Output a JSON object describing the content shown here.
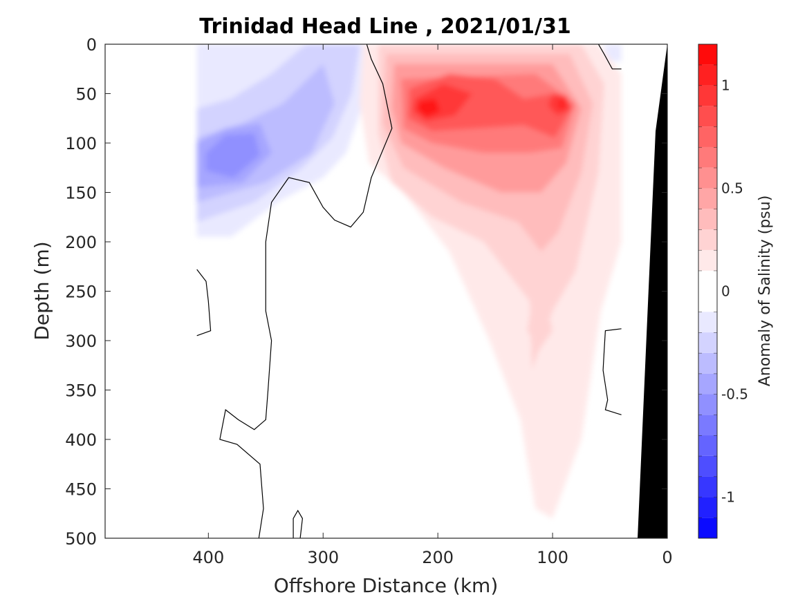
{
  "chart_data": {
    "type": "heatmap",
    "title": "Trinidad Head Line , 2021/01/31",
    "xlabel": "Offshore Distance (km)",
    "ylabel": "Depth (m)",
    "xlim": [
      490,
      0
    ],
    "ylim": [
      0,
      500
    ],
    "x_reversed": true,
    "y_reversed": true,
    "x_ticks": [
      "400",
      "300",
      "200",
      "100",
      "0"
    ],
    "y_ticks": [
      "0",
      "50",
      "100",
      "150",
      "200",
      "250",
      "300",
      "350",
      "400",
      "450",
      "500"
    ],
    "colorbar": {
      "label": "Anomaly of Salinity (psu)",
      "range": [
        -1.2,
        1.2
      ],
      "ticks": [
        {
          "value": 1,
          "label": "1"
        },
        {
          "value": 0.5,
          "label": "0.5"
        },
        {
          "value": 0,
          "label": "0"
        },
        {
          "value": -0.5,
          "label": "-0.5"
        },
        {
          "value": -1,
          "label": "-1"
        }
      ],
      "levels": [
        -1.2,
        -1.1,
        -1.0,
        -0.9,
        -0.8,
        -0.7,
        -0.6,
        -0.5,
        -0.4,
        -0.3,
        -0.2,
        -0.1,
        0.1,
        0.2,
        0.3,
        0.4,
        0.5,
        0.6,
        0.7,
        0.8,
        0.9,
        1.0,
        1.1,
        1.2
      ]
    },
    "data_extent_km": [
      410,
      40
    ],
    "features": [
      {
        "name": "positive core",
        "x": 210,
        "depth": 65,
        "value": 1.1
      },
      {
        "name": "positive core",
        "x": 90,
        "depth": 60,
        "value": 1.0
      },
      {
        "name": "negative core",
        "x": 380,
        "depth": 115,
        "value": -0.6
      }
    ],
    "grid": false,
    "bathymetry_color": "#000000"
  },
  "colors": {
    "positive_max": "#ff0000",
    "negative_max": "#0000ff",
    "zero_band": "#ffffff",
    "contour_line": "#000000"
  }
}
